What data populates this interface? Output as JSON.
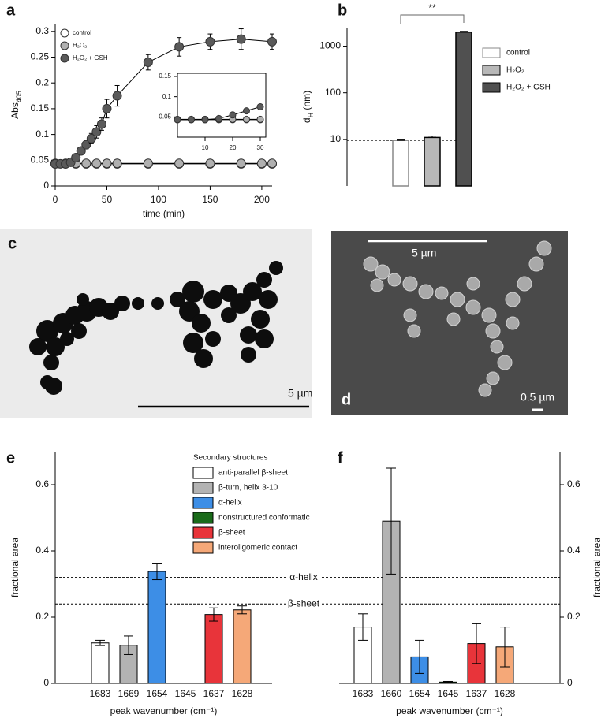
{
  "panels": {
    "a": "a",
    "b": "b",
    "c": "c",
    "d": "d",
    "e": "e",
    "f": "f"
  },
  "images": {
    "c_scale_bar": "5 µm",
    "d_scale_bar": "5 µm",
    "d_small_scale_bar": "0.5 µm"
  },
  "chart_data": [
    {
      "type": "line",
      "xlabel": "time (min)",
      "ylabel": {
        "text": "Abs",
        "sub": "405"
      },
      "xlim": [
        0,
        210
      ],
      "ylim": [
        0,
        0.315
      ],
      "xticks": [
        0,
        50,
        100,
        150,
        200
      ],
      "yticks": [
        0,
        0.05,
        0.1,
        0.15,
        0.2,
        0.25,
        0.3
      ],
      "legend": "upper left",
      "series": [
        {
          "name": "control",
          "color": "#ffffff",
          "x": [
            0,
            10,
            20,
            30,
            40,
            50,
            60,
            90,
            120,
            150,
            180,
            200,
            210
          ],
          "values": [
            0.043,
            0.043,
            0.043,
            0.043,
            0.043,
            0.043,
            0.043,
            0.043,
            0.043,
            0.043,
            0.043,
            0.043,
            0.043
          ]
        },
        {
          "name": "H₂O₂",
          "color": "#b0b0b0",
          "x": [
            0,
            10,
            20,
            30,
            40,
            50,
            60,
            90,
            120,
            150,
            180,
            200,
            210
          ],
          "values": [
            0.044,
            0.044,
            0.044,
            0.044,
            0.044,
            0.044,
            0.044,
            0.044,
            0.044,
            0.044,
            0.044,
            0.044,
            0.044
          ]
        },
        {
          "name": "H₂O₂ + GSH",
          "color": "#5a5a5a",
          "x": [
            0,
            5,
            10,
            15,
            20,
            25,
            30,
            35,
            40,
            45,
            50,
            60,
            90,
            120,
            150,
            180,
            210
          ],
          "values": [
            0.043,
            0.043,
            0.043,
            0.046,
            0.055,
            0.068,
            0.08,
            0.092,
            0.105,
            0.12,
            0.15,
            0.175,
            0.24,
            0.27,
            0.28,
            0.285,
            0.28
          ],
          "errors": [
            0.002,
            0.002,
            0.002,
            0.003,
            0.004,
            0.006,
            0.008,
            0.01,
            0.012,
            0.012,
            0.018,
            0.02,
            0.015,
            0.018,
            0.015,
            0.02,
            0.015
          ]
        }
      ]
    },
    {
      "type": "line",
      "xlim": [
        0,
        32
      ],
      "ylim": [
        0,
        0.15
      ],
      "xticks": [
        10,
        20,
        30
      ],
      "yticks": [
        0.05,
        0.1,
        0.15
      ],
      "series": [
        {
          "color": "#ffffff",
          "x": [
            0,
            5,
            10,
            15,
            20,
            25,
            30
          ],
          "values": [
            0.043,
            0.043,
            0.043,
            0.043,
            0.043,
            0.043,
            0.043
          ]
        },
        {
          "color": "#b0b0b0",
          "x": [
            0,
            5,
            10,
            15,
            20,
            25,
            30
          ],
          "values": [
            0.044,
            0.044,
            0.044,
            0.044,
            0.044,
            0.044,
            0.044
          ]
        },
        {
          "color": "#5a5a5a",
          "x": [
            0,
            5,
            10,
            15,
            20,
            25,
            30
          ],
          "values": [
            0.043,
            0.043,
            0.043,
            0.046,
            0.055,
            0.065,
            0.075
          ]
        }
      ]
    },
    {
      "type": "bar",
      "ylabel": {
        "text": "d",
        "sub": "H",
        "after": " (nm)"
      },
      "log": true,
      "ylim": [
        1,
        2500
      ],
      "yticks": [
        10,
        100,
        1000
      ],
      "reference_line": 9.5,
      "significance": "**",
      "legend": "right",
      "series": [
        {
          "name": "control",
          "color": "#ffffff",
          "edge": "#888888",
          "values": [
            9.5
          ],
          "errors": [
            0.6
          ]
        },
        {
          "name": "H₂O₂",
          "color": "#b8b8b8",
          "edge": "#000000",
          "values": [
            11
          ],
          "errors": [
            0.8
          ]
        },
        {
          "name": "H₂O₂ + GSH",
          "color": "#505050",
          "edge": "#000000",
          "values": [
            2000
          ],
          "errors": [
            80
          ]
        }
      ]
    },
    {
      "type": "category_bar",
      "xlabel": "peak wavenumber (cm⁻¹)",
      "ylabel": "fractional area",
      "y_axis_side": "left",
      "categories": [
        "1683",
        "1669",
        "1654",
        "1645",
        "1637",
        "1628"
      ],
      "values": [
        0.122,
        0.115,
        0.338,
        null,
        0.208,
        0.222
      ],
      "errors": [
        0.008,
        0.028,
        0.025,
        null,
        0.02,
        0.012
      ],
      "colors": [
        "#ffffff",
        "#b3b3b3",
        "#3d8ee6",
        "#1a6b1a",
        "#e8343a",
        "#f5a878"
      ],
      "ylim": [
        0,
        0.7
      ],
      "yticks": [
        0,
        0.2,
        0.4,
        0.6
      ],
      "reference_lines": [
        {
          "value": 0.32,
          "label": "α-helix"
        },
        {
          "value": 0.24,
          "label": "β-sheet"
        }
      ],
      "legend": {
        "title": "Secondary structures",
        "entries": [
          {
            "name": "anti-parallel β-sheet",
            "color": "#ffffff"
          },
          {
            "name": "β-turn, helix 3-10",
            "color": "#b3b3b3"
          },
          {
            "name": "α-helix",
            "color": "#3d8ee6"
          },
          {
            "name": "nonstructured conformatic",
            "color": "#1a6b1a"
          },
          {
            "name": "β-sheet",
            "color": "#e8343a"
          },
          {
            "name": "interoligomeric contact",
            "color": "#f5a878"
          }
        ]
      }
    },
    {
      "type": "category_bar",
      "xlabel": "peak wavenumber (cm⁻¹)",
      "ylabel": "fractional area",
      "y_axis_side": "right",
      "categories": [
        "1683",
        "1660",
        "1654",
        "1645",
        "1637",
        "1628"
      ],
      "values": [
        0.17,
        0.49,
        0.08,
        0.004,
        0.12,
        0.11
      ],
      "errors": [
        0.04,
        0.16,
        0.05,
        0.002,
        0.06,
        0.06
      ],
      "colors": [
        "#ffffff",
        "#b3b3b3",
        "#3d8ee6",
        "#1a6b1a",
        "#e8343a",
        "#f5a878"
      ],
      "ylim": [
        0,
        0.7
      ],
      "yticks": [
        0,
        0.2,
        0.4,
        0.6
      ],
      "reference_lines": [
        {
          "value": 0.32
        },
        {
          "value": 0.24
        }
      ]
    }
  ]
}
